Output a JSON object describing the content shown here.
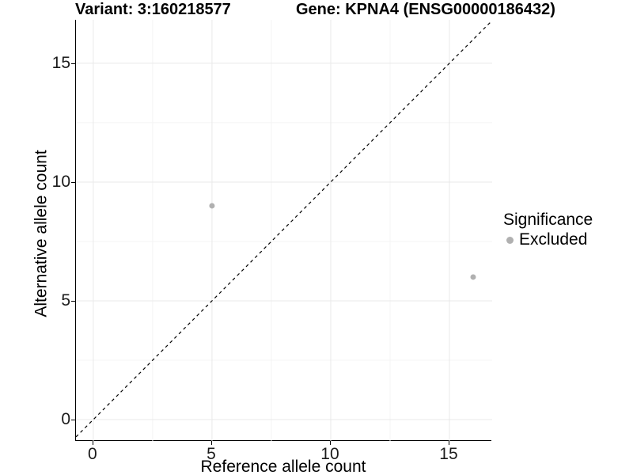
{
  "chart_data": {
    "type": "scatter",
    "title_left": "Variant: 3:160218577",
    "title_right": "Gene: KPNA4 (ENSG00000186432)",
    "xlabel": "Reference allele count",
    "ylabel": "Alternative allele count",
    "x_ticks": [
      0,
      5,
      10,
      15
    ],
    "y_ticks": [
      0,
      5,
      10,
      15
    ],
    "x_minor_ticks": [
      2.5,
      7.5,
      12.5
    ],
    "y_minor_ticks": [
      2.5,
      7.5,
      12.5
    ],
    "xlim": [
      -0.73,
      16.8
    ],
    "ylim": [
      -0.9,
      16.83
    ],
    "grid": true,
    "reference_line": {
      "type": "identity y=x",
      "style": "dashed",
      "color": "#000000"
    },
    "series": [
      {
        "name": "Excluded",
        "color": "#b0b0b0",
        "points": [
          {
            "x": 5,
            "y": 9
          },
          {
            "x": 16,
            "y": 6
          }
        ]
      }
    ],
    "legend": {
      "position": "right",
      "title": "Significance",
      "items": [
        {
          "label": "Excluded",
          "color": "#b0b0b0"
        }
      ]
    }
  },
  "colors": {
    "grid_major": "#e9e9e9",
    "grid_minor": "#f4f4f4",
    "axis_line": "#000000",
    "point": "#b0b0b0",
    "tick_label": "#1a1a1a"
  }
}
